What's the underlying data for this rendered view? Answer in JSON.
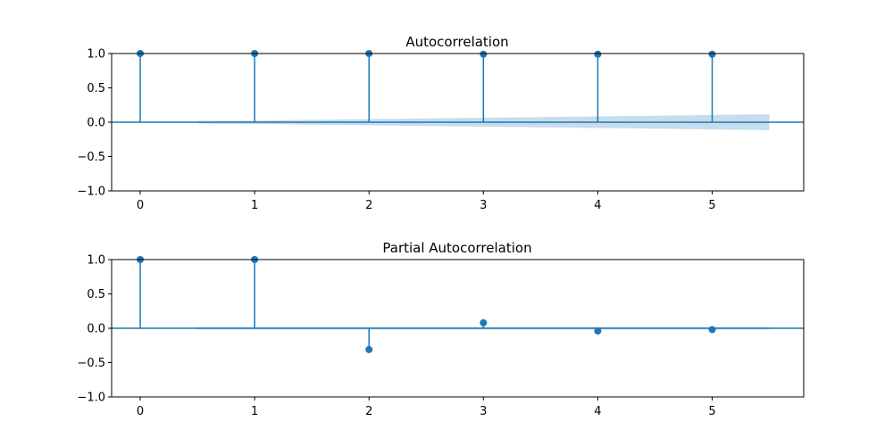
{
  "colors": {
    "stem": "#1f77b4",
    "band": "#1f77b4",
    "axes": "#000000",
    "background": "#ffffff"
  },
  "chart_data": [
    {
      "type": "stem",
      "title": "Autocorrelation",
      "xlabel": "",
      "ylabel": "",
      "xlim": [
        -0.25,
        5.8
      ],
      "ylim": [
        -1.0,
        1.0
      ],
      "x_ticks": [
        "0",
        "1",
        "2",
        "3",
        "4",
        "5"
      ],
      "y_ticks": [
        "1.0",
        "0.5",
        "0.0",
        "−0.5",
        "−1.0"
      ],
      "lags": [
        0,
        1,
        2,
        3,
        4,
        5
      ],
      "values": [
        1.0,
        1.0,
        1.0,
        0.99,
        0.99,
        0.99
      ],
      "confidence_band": {
        "x": [
          0.5,
          1,
          1.5,
          2,
          2.5,
          3,
          3.5,
          4,
          4.5,
          5,
          5.5
        ],
        "upper": [
          0.02,
          0.025,
          0.035,
          0.045,
          0.055,
          0.065,
          0.075,
          0.085,
          0.095,
          0.105,
          0.115
        ],
        "lower": [
          -0.02,
          -0.025,
          -0.035,
          -0.045,
          -0.055,
          -0.065,
          -0.075,
          -0.085,
          -0.095,
          -0.105,
          -0.115
        ]
      },
      "grid": false,
      "legend": "none"
    },
    {
      "type": "stem",
      "title": "Partial Autocorrelation",
      "xlabel": "",
      "ylabel": "",
      "xlim": [
        -0.25,
        5.8
      ],
      "ylim": [
        -1.0,
        1.0
      ],
      "x_ticks": [
        "0",
        "1",
        "2",
        "3",
        "4",
        "5"
      ],
      "y_ticks": [
        "1.0",
        "0.5",
        "0.0",
        "−0.5",
        "−1.0"
      ],
      "lags": [
        0,
        1,
        2,
        3,
        4,
        5
      ],
      "values": [
        1.0,
        1.0,
        -0.31,
        0.08,
        -0.04,
        -0.02
      ],
      "confidence_band": {
        "x": [
          0.5,
          5.5
        ],
        "upper": [
          0.02,
          0.02
        ],
        "lower": [
          -0.02,
          -0.02
        ]
      },
      "grid": false,
      "legend": "none"
    }
  ]
}
